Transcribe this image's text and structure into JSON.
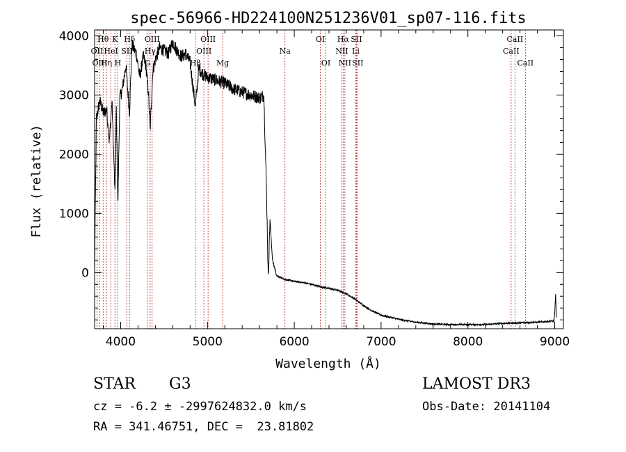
{
  "chart_data": {
    "type": "line",
    "title": "spec-56966-HD224100N251236V01_sp07-116.fits",
    "xlabel": "Wavelength (Å)",
    "ylabel": "Flux (relative)",
    "xlim": [
      3700,
      9100
    ],
    "ylim": [
      -950,
      4100
    ],
    "xticks": [
      4000,
      5000,
      6000,
      7000,
      8000,
      9000
    ],
    "yticks": [
      0,
      1000,
      2000,
      3000,
      4000
    ],
    "spectrum_anchors": {
      "x": [
        3700,
        3720,
        3760,
        3800,
        3840,
        3870,
        3900,
        3935,
        3950,
        3968,
        3990,
        4020,
        4060,
        4102,
        4130,
        4180,
        4220,
        4260,
        4290,
        4320,
        4340,
        4370,
        4400,
        4450,
        4500,
        4550,
        4600,
        4650,
        4700,
        4750,
        4800,
        4861,
        4900,
        4950,
        5000,
        5100,
        5200,
        5300,
        5400,
        5500,
        5600,
        5650,
        5680,
        5700,
        5720,
        5750,
        5800,
        5900,
        6000,
        6100,
        6200,
        6300,
        6400,
        6500,
        6600,
        6700,
        6800,
        6900,
        7000,
        7200,
        7400,
        7600,
        7800,
        8000,
        8200,
        8400,
        8600,
        8800,
        8990,
        9000,
        9010,
        9020
      ],
      "y": [
        0,
        2600,
        2900,
        2700,
        2750,
        2200,
        2900,
        1300,
        2800,
        1100,
        2950,
        3100,
        3500,
        2700,
        3850,
        3700,
        3300,
        3650,
        3500,
        3050,
        2400,
        3400,
        3600,
        3800,
        3750,
        3700,
        3900,
        3750,
        3650,
        3700,
        3550,
        2800,
        3450,
        3350,
        3300,
        3250,
        3200,
        3100,
        3050,
        3000,
        2950,
        3000,
        1400,
        -100,
        900,
        200,
        -60,
        -120,
        -150,
        -170,
        -200,
        -240,
        -270,
        -300,
        -360,
        -450,
        -560,
        -650,
        -720,
        -790,
        -840,
        -870,
        -880,
        -880,
        -880,
        -860,
        -850,
        -840,
        -820,
        -720,
        -350,
        -760
      ]
    },
    "absorption_features": [
      {
        "name": "Hγ",
        "label": "Hγ",
        "x": 4340
      },
      {
        "name": "Hβ",
        "label": "Hβ",
        "x": 4861
      },
      {
        "name": "Na dip",
        "label": "",
        "x": 5700
      }
    ],
    "line_markers": [
      {
        "label": "Hθ",
        "x": 3798,
        "row": 0
      },
      {
        "label": "OII",
        "x": 3727,
        "row": 1
      },
      {
        "label": "OIII",
        "x": 3760,
        "row": 2
      },
      {
        "label": "Hη",
        "x": 3836,
        "row": 2
      },
      {
        "label": "HeI",
        "x": 3889,
        "row": 1
      },
      {
        "label": "K",
        "x": 3934,
        "row": 0
      },
      {
        "label": "H",
        "x": 3968,
        "row": 2
      },
      {
        "label": "SII",
        "x": 4072,
        "row": 1
      },
      {
        "label": "Hδ",
        "x": 4102,
        "row": 0
      },
      {
        "label": "OIII",
        "x": 4363,
        "row": 0
      },
      {
        "label": "Hγ",
        "x": 4340,
        "row": 1
      },
      {
        "label": "G",
        "x": 4305,
        "row": 2
      },
      {
        "label": "Hβ",
        "x": 4861,
        "row": 2
      },
      {
        "label": "OIII",
        "x": 4959,
        "row": 1
      },
      {
        "label": "OIII",
        "x": 5007,
        "row": 0
      },
      {
        "label": "Mg",
        "x": 5175,
        "row": 2
      },
      {
        "label": "Na",
        "x": 5893,
        "row": 1
      },
      {
        "label": "OI",
        "x": 6300,
        "row": 0
      },
      {
        "label": "OI",
        "x": 6364,
        "row": 2
      },
      {
        "label": "NII",
        "x": 6548,
        "row": 1
      },
      {
        "label": "Hα",
        "x": 6563,
        "row": 0
      },
      {
        "label": "NII",
        "x": 6583,
        "row": 2
      },
      {
        "label": "Li",
        "x": 6708,
        "row": 1
      },
      {
        "label": "SII",
        "x": 6716,
        "row": 0
      },
      {
        "label": "SII",
        "x": 6731,
        "row": 2
      },
      {
        "label": "CaII",
        "x": 8498,
        "row": 1
      },
      {
        "label": "CaII",
        "x": 8542,
        "row": 0
      },
      {
        "label": "CaII",
        "x": 8662,
        "row": 2
      }
    ],
    "colors": {
      "spectrum": "#000000",
      "markers": "#b22222",
      "axes": "#000000"
    }
  },
  "info": {
    "object_type": "STAR",
    "spectral_class": "G3",
    "survey": "LAMOST DR3",
    "cz": "cz = -6.2 ± -2997624832.0 km/s",
    "obs_date": "Obs-Date: 20141104",
    "coords": "RA = 341.46751, DEC =  23.81802"
  }
}
